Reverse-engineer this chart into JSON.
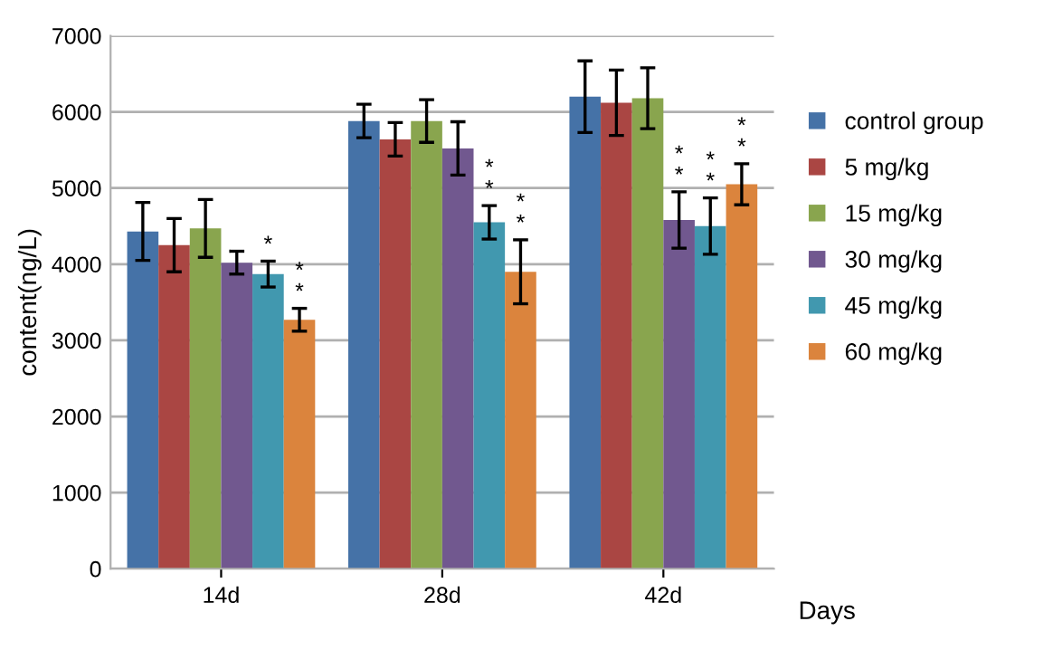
{
  "chart_data": {
    "type": "bar",
    "categories": [
      "14d",
      "28d",
      "42d"
    ],
    "xlabel": "Days",
    "ylabel": "content(ng/L)",
    "ylim": [
      0,
      7000
    ],
    "yticks": [
      0,
      1000,
      2000,
      3000,
      4000,
      5000,
      6000,
      7000
    ],
    "grid": "y",
    "legend": "right",
    "series": [
      {
        "name": "control group",
        "color": "#4572a7",
        "values": [
          4430,
          5880,
          6200
        ],
        "errors": [
          380,
          220,
          470
        ]
      },
      {
        "name": "5 mg/kg",
        "color": "#aa4643",
        "values": [
          4250,
          5640,
          6120
        ],
        "errors": [
          350,
          220,
          430
        ]
      },
      {
        "name": "15 mg/kg",
        "color": "#89a54e",
        "values": [
          4470,
          5880,
          6180
        ],
        "errors": [
          380,
          280,
          400
        ]
      },
      {
        "name": "30 mg/kg",
        "color": "#71588f",
        "values": [
          4020,
          5520,
          4580
        ],
        "errors": [
          150,
          350,
          370
        ],
        "value_labels": [
          null,
          null,
          "*\n*"
        ]
      },
      {
        "name": "45 mg/kg",
        "color": "#4198af",
        "values": [
          3870,
          4550,
          4500
        ],
        "errors": [
          170,
          220,
          370
        ],
        "value_labels": [
          "*",
          "*\n*",
          "*\n*"
        ]
      },
      {
        "name": "60 mg/kg",
        "color": "#db843d",
        "values": [
          3270,
          3900,
          5050
        ],
        "errors": [
          150,
          420,
          270
        ],
        "value_labels": [
          "*\n*",
          "*\n*",
          "*\n*"
        ]
      }
    ]
  }
}
